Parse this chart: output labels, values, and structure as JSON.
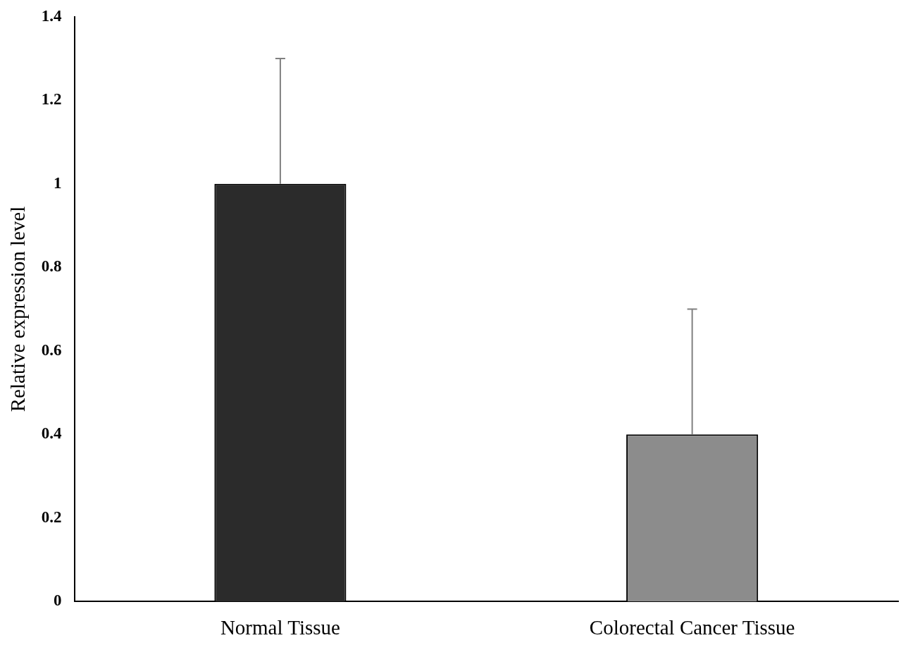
{
  "chart_data": {
    "type": "bar",
    "categories": [
      "Normal Tissue",
      "Colorectal Cancer Tissue"
    ],
    "values": [
      1,
      0.4
    ],
    "colors": [
      "#2b2b2b",
      "#8c8c8c"
    ],
    "errors": [
      [
        1,
        1.3
      ],
      [
        0.4,
        0.7
      ]
    ],
    "ylabel": "Relative expression level",
    "ylim": [
      0,
      1.4
    ],
    "yticks": [
      0,
      0.2,
      0.4,
      0.6,
      0.8,
      1,
      1.2,
      1.4
    ],
    "grid": false,
    "legend": false
  }
}
